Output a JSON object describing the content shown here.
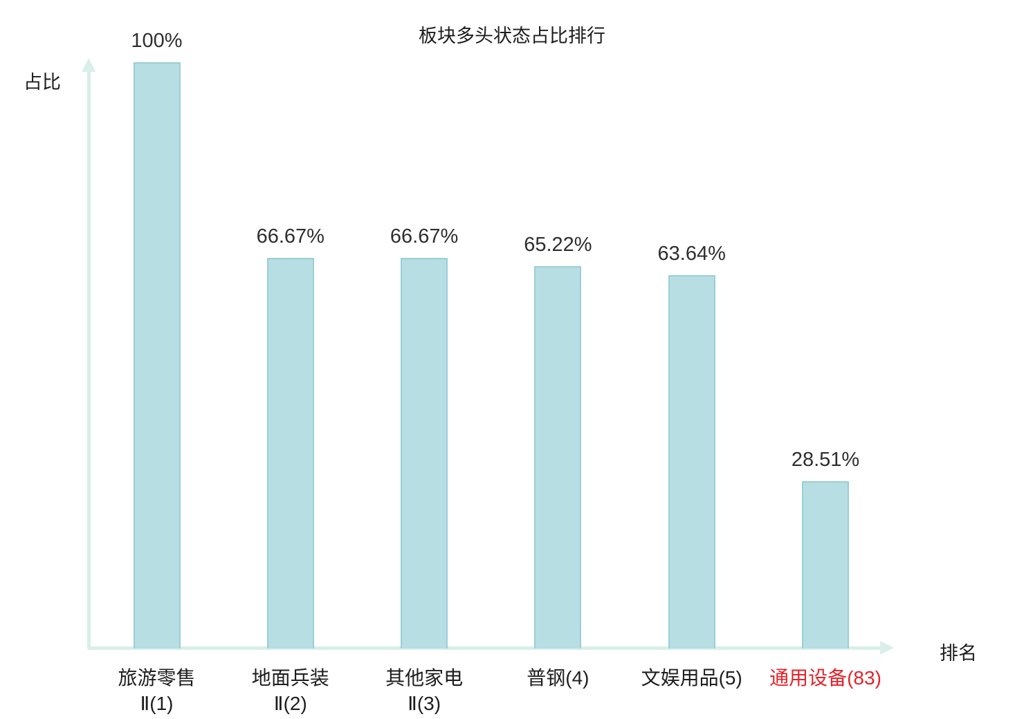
{
  "chart_data": {
    "type": "bar",
    "title": "板块多头状态占比排行",
    "xlabel": "排名",
    "ylabel": "占比",
    "categories": [
      "旅游零售Ⅱ(1)",
      "地面兵装Ⅱ(2)",
      "其他家电Ⅱ(3)",
      "普钢(4)",
      "文娱用品(5)",
      "通用设备(83)"
    ],
    "category_lines": [
      [
        "旅游零售",
        "Ⅱ(1)"
      ],
      [
        "地面兵装",
        "Ⅱ(2)"
      ],
      [
        "其他家电",
        "Ⅱ(3)"
      ],
      [
        "普钢(4)"
      ],
      [
        "文娱用品(5)"
      ],
      [
        "通用设备(83)"
      ]
    ],
    "values": [
      100,
      66.67,
      66.67,
      65.22,
      63.64,
      28.51
    ],
    "value_labels": [
      "100%",
      "66.67%",
      "66.67%",
      "65.22%",
      "63.64%",
      "28.51%"
    ],
    "ylim": [
      0,
      100
    ],
    "grid": false,
    "legend": false,
    "highlight_category_index": 5,
    "colors": {
      "bar_fill": "#b6dee3",
      "bar_border": "#9bced6",
      "axis": "#d9efe9",
      "text": "#2f2f2f",
      "highlight_label": "#e62129"
    }
  }
}
